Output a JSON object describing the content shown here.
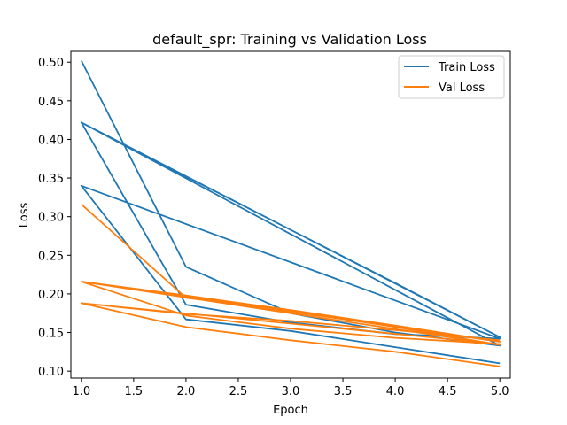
{
  "chart_data": {
    "type": "line",
    "title": "default_spr: Training vs Validation Loss",
    "xlabel": "Epoch",
    "ylabel": "Loss",
    "xlim": [
      0.9,
      5.1
    ],
    "ylim": [
      0.091,
      0.514
    ],
    "xticks": [
      "1.0",
      "1.5",
      "2.0",
      "2.5",
      "3.0",
      "3.5",
      "4.0",
      "4.5",
      "5.0"
    ],
    "yticks": [
      "0.10",
      "0.15",
      "0.20",
      "0.25",
      "0.30",
      "0.35",
      "0.40",
      "0.45",
      "0.50"
    ],
    "grid": false,
    "legend_position": "top-right",
    "legend": [
      {
        "label": "Train Loss",
        "color": "#1f77b4"
      },
      {
        "label": "Val Loss",
        "color": "#ff7f0e"
      }
    ],
    "series": [
      {
        "name": "Train Loss",
        "color": "#1f77b4",
        "x": [
          1,
          2,
          3,
          4,
          5,
          1,
          2,
          3,
          4,
          5,
          1,
          2,
          3,
          4,
          5,
          1,
          2,
          3,
          4,
          5
        ],
        "y": [
          0.502,
          0.235,
          0.175,
          0.15,
          0.133,
          0.422,
          0.352,
          0.283,
          0.214,
          0.144,
          0.422,
          0.186,
          0.163,
          0.148,
          0.142,
          0.34,
          0.167,
          0.152,
          0.131,
          0.11
        ]
      },
      {
        "name": "Val Loss",
        "color": "#ff7f0e",
        "x": [
          1,
          2,
          3,
          4,
          5,
          1,
          2,
          3,
          4,
          5,
          1,
          2,
          3,
          4,
          5,
          1,
          2,
          3,
          4,
          5
        ],
        "y": [
          0.316,
          0.195,
          0.178,
          0.157,
          0.134,
          0.216,
          0.198,
          0.179,
          0.159,
          0.138,
          0.216,
          0.172,
          0.155,
          0.143,
          0.135,
          0.188,
          0.174,
          0.165,
          0.153,
          0.14
        ]
      },
      {
        "name": "",
        "color": "#ff7f0e",
        "x": [
          1,
          2,
          3,
          4,
          5
        ],
        "y": [
          0.188,
          0.157,
          0.14,
          0.125,
          0.106
        ]
      }
    ]
  }
}
